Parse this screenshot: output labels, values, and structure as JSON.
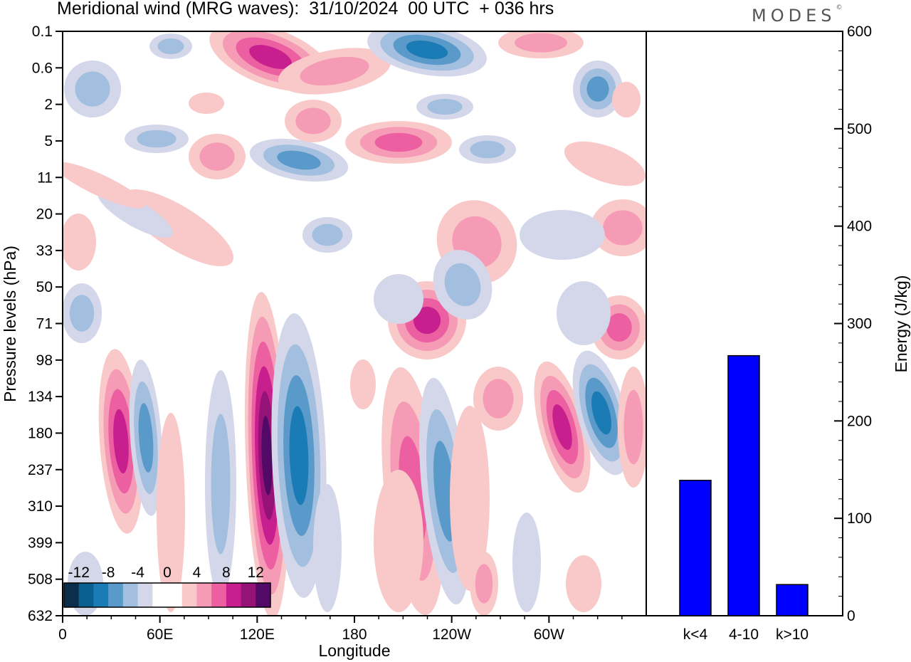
{
  "header": {
    "title": "Meridional wind (MRG waves):  31/10/2024  00 UTC  + 036 hrs",
    "logo": "MODES",
    "logo_mark": "©"
  },
  "chart_data": [
    {
      "type": "heatmap",
      "xlabel": "Longitude",
      "ylabel": "Pressure levels (hPa)",
      "x_ticks": [
        "0",
        "60E",
        "120E",
        "180",
        "120W",
        "60W"
      ],
      "y_ticks": [
        "0.1",
        "0.6",
        "2",
        "5",
        "11",
        "20",
        "33",
        "50",
        "71",
        "98",
        "134",
        "180",
        "237",
        "310",
        "399",
        "508",
        "632"
      ],
      "colorbar": {
        "labels": [
          "-12",
          "-8",
          "-4",
          "0",
          "4",
          "8",
          "12"
        ],
        "colors": [
          "#0b2e4b",
          "#0a5f91",
          "#1b7cb5",
          "#5a9acb",
          "#a3bfdf",
          "#d3d7e9",
          "#ffffff",
          "#ffffff",
          "#f9c8c8",
          "#f59bb5",
          "#ec5fa1",
          "#c7208e",
          "#951276",
          "#520a66"
        ]
      }
    },
    {
      "type": "bar",
      "ylabel": "Energy (J/kg)",
      "categories": [
        "k<4",
        "4-10",
        "k>10"
      ],
      "values": [
        139,
        267,
        32
      ],
      "ylim": [
        0,
        600
      ],
      "y_ticks": [
        "0",
        "100",
        "200",
        "300",
        "400",
        "500",
        "600"
      ],
      "bar_color": "#0000ff"
    }
  ]
}
